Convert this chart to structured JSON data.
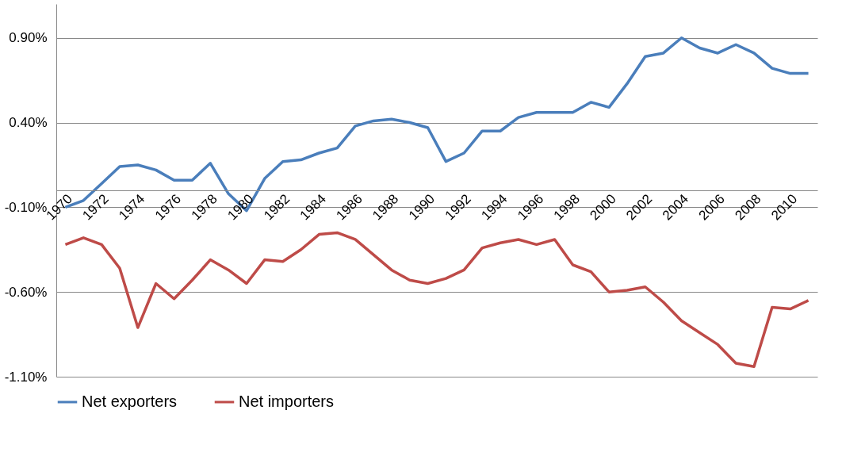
{
  "chart_data": {
    "type": "line",
    "categories": [
      "1970",
      null,
      "1972",
      null,
      "1974",
      null,
      "1976",
      null,
      "1978",
      null,
      "1980",
      null,
      "1982",
      null,
      "1984",
      null,
      "1986",
      null,
      "1988",
      null,
      "1990",
      null,
      "1992",
      null,
      "1994",
      null,
      "1996",
      null,
      "1998",
      null,
      "2000",
      null,
      "2002",
      null,
      "2004",
      null,
      "2006",
      null,
      "2008",
      null,
      "2010",
      null
    ],
    "series": [
      {
        "name": "Net exporters",
        "color": "#4a7ebb",
        "values": [
          -0.1,
          -0.06,
          0.04,
          0.14,
          0.15,
          0.12,
          0.06,
          0.06,
          0.16,
          -0.02,
          -0.12,
          0.07,
          0.17,
          0.18,
          0.22,
          0.25,
          0.38,
          0.41,
          0.42,
          0.4,
          0.37,
          0.17,
          0.22,
          0.35,
          0.35,
          0.43,
          0.46,
          0.46,
          0.46,
          0.52,
          0.49,
          0.63,
          0.79,
          0.81,
          0.9,
          0.84,
          0.81,
          0.86,
          0.81,
          0.72,
          0.69,
          0.69
        ]
      },
      {
        "name": "Net importers",
        "color": "#be4b48",
        "values": [
          -0.32,
          -0.28,
          -0.32,
          -0.46,
          -0.81,
          -0.55,
          -0.64,
          -0.53,
          -0.41,
          -0.47,
          -0.55,
          -0.41,
          -0.42,
          -0.35,
          -0.26,
          -0.25,
          -0.29,
          -0.38,
          -0.47,
          -0.53,
          -0.55,
          -0.52,
          -0.47,
          -0.34,
          -0.31,
          -0.29,
          -0.32,
          -0.29,
          -0.44,
          -0.48,
          -0.6,
          -0.59,
          -0.57,
          -0.66,
          -0.77,
          -0.84,
          -0.91,
          -1.02,
          -1.04,
          -0.69,
          -0.7,
          -0.65
        ]
      }
    ],
    "ylim": [
      -1.1,
      1.1
    ],
    "yticks": [
      {
        "value": 0.9,
        "label": "0.90%"
      },
      {
        "value": 0.4,
        "label": "0.40%"
      },
      {
        "value": -0.1,
        "label": "-0.10%"
      },
      {
        "value": -0.6,
        "label": "-0.60%"
      },
      {
        "value": -1.1,
        "label": "-1.10%"
      }
    ],
    "grid": "y",
    "legend": "bottom",
    "line_style": "solid"
  }
}
